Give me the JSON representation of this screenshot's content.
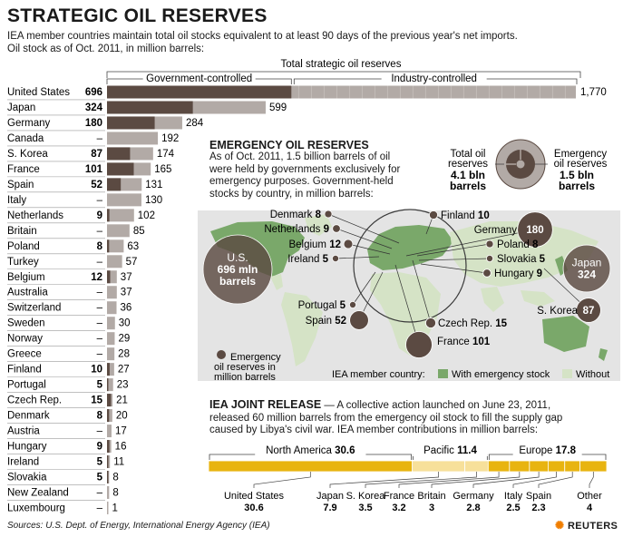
{
  "title": "STRATEGIC OIL RESERVES",
  "subtitle_lines": [
    "IEA member countries maintain total oil stocks equivalent to at least 90 days of the previous year's net imports.",
    "Oil stock as of Oct. 2011, in million barrels:"
  ],
  "colors": {
    "government": "#5b4a42",
    "industry": "#b2aaa6",
    "map_emergency": "#7aa86a",
    "map_without": "#d5e3c6",
    "ocean": "#d9d9d9",
    "release": "#e8b410"
  },
  "chart_data": [
    {
      "type": "bar",
      "title": "Total strategic oil reserves",
      "legend_labels": [
        "Government-controlled",
        "Industry-controlled"
      ],
      "rows": [
        {
          "country": "United States",
          "gov": 696,
          "gov_label": "696",
          "total": 1770,
          "total_label": "1,770"
        },
        {
          "country": "Japan",
          "gov": 324,
          "gov_label": "324",
          "total": 599,
          "total_label": "599"
        },
        {
          "country": "Germany",
          "gov": 180,
          "gov_label": "180",
          "total": 284,
          "total_label": "284"
        },
        {
          "country": "Canada",
          "gov": 0,
          "gov_label": "–",
          "total": 192,
          "total_label": "192"
        },
        {
          "country": "S. Korea",
          "gov": 87,
          "gov_label": "87",
          "total": 174,
          "total_label": "174"
        },
        {
          "country": "France",
          "gov": 101,
          "gov_label": "101",
          "total": 165,
          "total_label": "165"
        },
        {
          "country": "Spain",
          "gov": 52,
          "gov_label": "52",
          "total": 131,
          "total_label": "131"
        },
        {
          "country": "Italy",
          "gov": 0,
          "gov_label": "–",
          "total": 130,
          "total_label": "130"
        },
        {
          "country": "Netherlands",
          "gov": 9,
          "gov_label": "9",
          "total": 102,
          "total_label": "102"
        },
        {
          "country": "Britain",
          "gov": 0,
          "gov_label": "–",
          "total": 85,
          "total_label": "85"
        },
        {
          "country": "Poland",
          "gov": 8,
          "gov_label": "8",
          "total": 63,
          "total_label": "63"
        },
        {
          "country": "Turkey",
          "gov": 0,
          "gov_label": "–",
          "total": 57,
          "total_label": "57"
        },
        {
          "country": "Belgium",
          "gov": 12,
          "gov_label": "12",
          "total": 37,
          "total_label": "37"
        },
        {
          "country": "Australia",
          "gov": 0,
          "gov_label": "–",
          "total": 37,
          "total_label": "37"
        },
        {
          "country": "Switzerland",
          "gov": 0,
          "gov_label": "–",
          "total": 36,
          "total_label": "36"
        },
        {
          "country": "Sweden",
          "gov": 0,
          "gov_label": "–",
          "total": 30,
          "total_label": "30"
        },
        {
          "country": "Norway",
          "gov": 0,
          "gov_label": "–",
          "total": 29,
          "total_label": "29"
        },
        {
          "country": "Greece",
          "gov": 0,
          "gov_label": "–",
          "total": 28,
          "total_label": "28"
        },
        {
          "country": "Finland",
          "gov": 10,
          "gov_label": "10",
          "total": 27,
          "total_label": "27"
        },
        {
          "country": "Portugal",
          "gov": 5,
          "gov_label": "5",
          "total": 23,
          "total_label": "23"
        },
        {
          "country": "Czech Rep.",
          "gov": 15,
          "gov_label": "15",
          "total": 21,
          "total_label": "21"
        },
        {
          "country": "Denmark",
          "gov": 8,
          "gov_label": "8",
          "total": 20,
          "total_label": "20"
        },
        {
          "country": "Austria",
          "gov": 0,
          "gov_label": "–",
          "total": 17,
          "total_label": "17"
        },
        {
          "country": "Hungary",
          "gov": 9,
          "gov_label": "9",
          "total": 16,
          "total_label": "16"
        },
        {
          "country": "Ireland",
          "gov": 5,
          "gov_label": "5",
          "total": 11,
          "total_label": "11"
        },
        {
          "country": "Slovakia",
          "gov": 5,
          "gov_label": "5",
          "total": 8,
          "total_label": "8"
        },
        {
          "country": "New Zealand",
          "gov": 0,
          "gov_label": "–",
          "total": 8,
          "total_label": "8"
        },
        {
          "country": "Luxembourg",
          "gov": 0,
          "gov_label": "–",
          "total": 1,
          "total_label": "1"
        }
      ]
    },
    {
      "type": "scatter",
      "title": "EMERGENCY OIL RESERVES",
      "description_lines": [
        "As of Oct. 2011, 1.5 billion barrels of oil",
        "were held by governments exclusively for",
        "emergency purposes. Government-held",
        "stocks by country, in million barrels:"
      ],
      "bubbles": [
        {
          "name": "U.S.",
          "value": 696,
          "label_lines": [
            "U.S.",
            "696 mln",
            "barrels"
          ]
        },
        {
          "name": "Japan",
          "value": 324,
          "label_lines": [
            "Japan",
            "324"
          ]
        },
        {
          "name": "Germany",
          "value": 180,
          "label_lines": [
            "180"
          ],
          "callout": "Germany"
        },
        {
          "name": "France",
          "value": 101,
          "callout": "France 101"
        },
        {
          "name": "S. Korea",
          "value": 87,
          "label_lines": [
            "87"
          ],
          "callout": "S. Korea"
        },
        {
          "name": "Spain",
          "value": 52,
          "callout": "Spain 52"
        },
        {
          "name": "Czech Rep.",
          "value": 15,
          "callout": "Czech Rep. 15"
        },
        {
          "name": "Belgium",
          "value": 12,
          "callout": "Belgium 12"
        },
        {
          "name": "Finland",
          "value": 10,
          "callout": "Finland 10"
        },
        {
          "name": "Netherlands",
          "value": 9,
          "callout": "Netherlands 9"
        },
        {
          "name": "Hungary",
          "value": 9,
          "callout": "Hungary 9"
        },
        {
          "name": "Denmark",
          "value": 8,
          "callout": "Denmark 8"
        },
        {
          "name": "Poland",
          "value": 8,
          "callout": "Poland 8"
        },
        {
          "name": "Ireland",
          "value": 5,
          "callout": "Ireland 5"
        },
        {
          "name": "Portugal",
          "value": 5,
          "callout": "Portugal 5"
        },
        {
          "name": "Slovakia",
          "value": 5,
          "callout": "Slovakia 5"
        }
      ],
      "bubble_legend_lines": [
        "Emergency",
        "oil reserves in",
        "million barrels"
      ],
      "totals": {
        "total_label_lines": [
          "Total oil",
          "reserves"
        ],
        "total_value_lines": [
          "4.1 bln",
          "barrels"
        ],
        "emergency_label_lines": [
          "Emergency",
          "oil reserves"
        ],
        "emergency_value_lines": [
          "1.5 bln",
          "barrels"
        ]
      },
      "map_legend": {
        "prefix": "IEA member country:",
        "with_label": "With emergency stock",
        "without_label": "Without"
      }
    },
    {
      "type": "bar",
      "title": "IEA JOINT RELEASE",
      "title_suffix": " — A collective action launched on June 23, 2011,",
      "description_lines": [
        "released 60 million barrels from the emergency oil stock to fill the supply gap",
        "caused by Libya's civil war. IEA member contributions in million barrels:"
      ],
      "groups": [
        {
          "name": "North America",
          "total": 30.6,
          "total_label": "30.6"
        },
        {
          "name": "Pacific",
          "total": 11.4,
          "total_label": "11.4"
        },
        {
          "name": "Europe",
          "total": 17.8,
          "total_label": "17.8"
        }
      ],
      "contributions": [
        {
          "name": "United States",
          "value": 30.6,
          "label": "30.6",
          "group": "North America"
        },
        {
          "name": "Japan",
          "value": 7.9,
          "label": "7.9",
          "group": "Pacific"
        },
        {
          "name": "S. Korea",
          "value": 3.5,
          "label": "3.5",
          "group": "Pacific"
        },
        {
          "name": "France",
          "value": 3.2,
          "label": "3.2",
          "group": "Europe"
        },
        {
          "name": "Britain",
          "value": 3,
          "label": "3",
          "group": "Europe"
        },
        {
          "name": "Germany",
          "value": 2.8,
          "label": "2.8",
          "group": "Europe"
        },
        {
          "name": "Italy",
          "value": 2.5,
          "label": "2.5",
          "group": "Europe"
        },
        {
          "name": "Spain",
          "value": 2.3,
          "label": "2.3",
          "group": "Europe"
        },
        {
          "name": "Other",
          "value": 4,
          "label": "4",
          "group": "Europe"
        }
      ]
    }
  ],
  "footer": {
    "sources": "Sources: U.S. Dept. of Energy, International Energy Agency (IEA)",
    "brand": "REUTERS"
  }
}
